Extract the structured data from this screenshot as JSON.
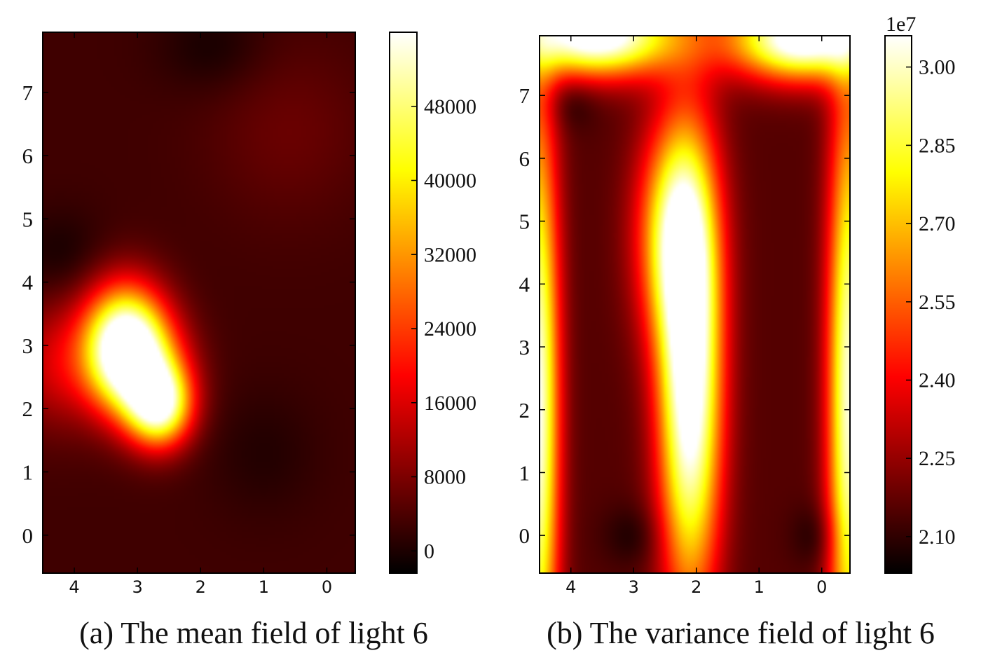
{
  "chart_data": [
    {
      "type": "heatmap",
      "caption": "(a) The mean field of light 6",
      "x_ticks": [
        4,
        3,
        2,
        1,
        0
      ],
      "x_range": [
        4.5,
        -0.45
      ],
      "y_ticks": [
        0,
        1,
        2,
        3,
        4,
        5,
        6,
        7
      ],
      "y_range": [
        -0.6,
        7.95
      ],
      "colormap": "hot",
      "colorbar": {
        "range": [
          -2400,
          56000
        ],
        "ticks": [
          "0",
          "8000",
          "16000",
          "24000",
          "32000",
          "40000",
          "48000"
        ],
        "tick_values": [
          0,
          8000,
          16000,
          24000,
          32000,
          40000,
          48000
        ],
        "offset_label": ""
      },
      "background_level": 0.09,
      "blobs": [
        {
          "x": 3.2,
          "y": 3.0,
          "sx": 0.45,
          "sy": 0.65,
          "level": 1.0
        },
        {
          "x": 2.65,
          "y": 2.05,
          "sx": 0.35,
          "sy": 0.45,
          "level": 0.8
        },
        {
          "x": 2.9,
          "y": 2.6,
          "sx": 0.5,
          "sy": 0.6,
          "level": 0.35
        },
        {
          "x": 4.3,
          "y": 2.7,
          "sx": 0.5,
          "sy": 0.7,
          "level": 0.2
        },
        {
          "x": 0.6,
          "y": 6.4,
          "sx": 0.9,
          "sy": 1.0,
          "level": 0.06
        },
        {
          "x": 4.2,
          "y": 4.4,
          "sx": 0.5,
          "sy": 0.5,
          "level": -0.06
        },
        {
          "x": 1.8,
          "y": 7.7,
          "sx": 0.6,
          "sy": 0.5,
          "level": -0.06
        },
        {
          "x": 1.0,
          "y": 1.3,
          "sx": 0.6,
          "sy": 0.7,
          "level": -0.04
        }
      ]
    },
    {
      "type": "heatmap",
      "caption": "(b) The variance field of light 6",
      "x_ticks": [
        4,
        3,
        2,
        1,
        0
      ],
      "x_range": [
        4.5,
        -0.45
      ],
      "y_ticks": [
        0,
        1,
        2,
        3,
        4,
        5,
        6,
        7
      ],
      "y_range": [
        -0.6,
        7.95
      ],
      "colormap": "hot",
      "colorbar": {
        "range": [
          20.3,
          30.6
        ],
        "ticks": [
          "2.10",
          "2.25",
          "2.40",
          "2.55",
          "2.70",
          "2.85",
          "3.00"
        ],
        "tick_values": [
          21.0,
          22.5,
          24.0,
          25.5,
          27.0,
          28.5,
          30.0
        ],
        "offset_label": "1e7"
      },
      "background_level": 0.12,
      "blobs": [
        {
          "x": 2.1,
          "y": 2.5,
          "sx": 0.35,
          "sy": 2.4,
          "level": 1.0
        },
        {
          "x": 2.35,
          "y": 4.8,
          "sx": 0.42,
          "sy": 1.2,
          "level": 0.6
        },
        {
          "x": 4.55,
          "y": 2.0,
          "sx": 0.25,
          "sy": 3.5,
          "level": 0.9
        },
        {
          "x": -0.45,
          "y": 2.2,
          "sx": 0.25,
          "sy": 3.5,
          "level": 0.85
        },
        {
          "x": 3.6,
          "y": 7.95,
          "sx": 0.9,
          "sy": 0.45,
          "level": 1.0
        },
        {
          "x": 0.3,
          "y": 7.9,
          "sx": 0.8,
          "sy": 0.45,
          "level": 1.0
        },
        {
          "x": 3.0,
          "y": 0.0,
          "sx": 0.35,
          "sy": 0.35,
          "level": -0.08
        },
        {
          "x": 0.05,
          "y": 0.0,
          "sx": 0.3,
          "sy": 0.35,
          "level": -0.08
        },
        {
          "x": 4.0,
          "y": 6.9,
          "sx": 0.3,
          "sy": 0.3,
          "level": -0.08
        }
      ]
    }
  ]
}
